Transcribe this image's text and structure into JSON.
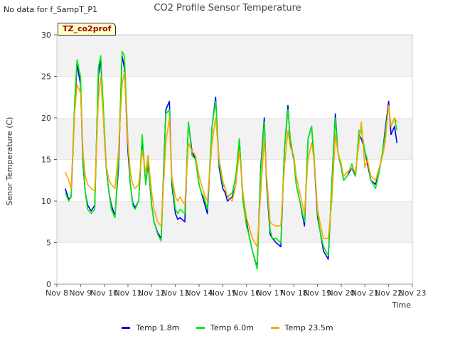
{
  "nodata_text": "No data for f_SampT_P1",
  "chart_data": {
    "type": "line",
    "title": "CO2 Profile Sensor Temperature",
    "xlabel": "Time",
    "ylabel": "Senor Temperature (C)",
    "site_tag": "TZ_co2prof",
    "ylim": [
      0,
      30
    ],
    "yticks": [
      0,
      5,
      10,
      15,
      20,
      25,
      30
    ],
    "xlim": [
      8,
      23
    ],
    "xticks": [
      8,
      9,
      10,
      11,
      12,
      13,
      14,
      15,
      16,
      17,
      18,
      19,
      20,
      21,
      22,
      23
    ],
    "xtick_labels": [
      "Nov 8",
      "Nov 9",
      "Nov 10",
      "Nov 11",
      "Nov 12",
      "Nov 13",
      "Nov 14",
      "Nov 15",
      "Nov 16",
      "Nov 17",
      "Nov 18",
      "Nov 19",
      "Nov 20",
      "Nov 21",
      "Nov 22",
      "Nov 23"
    ],
    "grid": "horizontal alternating bands",
    "legend_position": "bottom",
    "series": [
      {
        "name": "Temp 1.8m",
        "color": "#0000ee",
        "x": [
          8.35,
          8.5,
          8.6,
          8.75,
          8.85,
          9.0,
          9.1,
          9.2,
          9.3,
          9.45,
          9.6,
          9.75,
          9.85,
          10.0,
          10.1,
          10.2,
          10.3,
          10.45,
          10.6,
          10.75,
          10.85,
          11.0,
          11.1,
          11.2,
          11.3,
          11.45,
          11.6,
          11.75,
          11.85,
          12.0,
          12.1,
          12.25,
          12.4,
          12.6,
          12.75,
          12.85,
          13.0,
          13.1,
          13.2,
          13.4,
          13.55,
          13.7,
          13.85,
          14.0,
          14.1,
          14.2,
          14.35,
          14.55,
          14.7,
          14.85,
          15.0,
          15.1,
          15.2,
          15.4,
          15.55,
          15.7,
          15.85,
          16.0,
          16.1,
          16.25,
          16.45,
          16.6,
          16.75,
          16.85,
          17.0,
          17.1,
          17.25,
          17.45,
          17.6,
          17.75,
          17.85,
          18.0,
          18.1,
          18.25,
          18.45,
          18.6,
          18.75,
          18.85,
          19.0,
          19.1,
          19.25,
          19.45,
          19.6,
          19.75,
          19.85,
          20.0,
          20.1,
          20.25,
          20.45,
          20.6,
          20.75,
          20.85,
          21.0,
          21.1,
          21.25,
          21.45,
          21.6,
          21.75,
          21.85,
          22.0,
          22.1,
          22.25,
          22.35
        ],
        "values": [
          11.5,
          10.2,
          10.5,
          21.0,
          26.5,
          24.0,
          14.5,
          11.0,
          9.5,
          8.8,
          9.5,
          25.0,
          27.0,
          18.0,
          13.5,
          11.0,
          9.5,
          8.2,
          14.0,
          27.5,
          26.0,
          16.0,
          12.0,
          9.8,
          9.2,
          10.0,
          17.5,
          12.0,
          14.5,
          9.5,
          7.5,
          6.2,
          5.5,
          21.0,
          22.0,
          12.0,
          8.5,
          7.8,
          8.0,
          7.5,
          19.5,
          16.0,
          15.0,
          12.0,
          11.0,
          10.0,
          8.5,
          19.0,
          22.5,
          14.0,
          11.5,
          11.0,
          10.0,
          10.5,
          12.0,
          17.5,
          10.0,
          7.5,
          6.0,
          4.0,
          2.0,
          14.0,
          20.0,
          12.0,
          6.0,
          5.5,
          5.0,
          4.5,
          16.0,
          21.5,
          17.0,
          15.0,
          12.0,
          10.0,
          7.0,
          17.5,
          19.0,
          15.0,
          8.0,
          6.5,
          4.0,
          3.0,
          12.0,
          20.5,
          16.0,
          14.0,
          12.5,
          13.0,
          14.0,
          13.0,
          18.0,
          17.5,
          16.0,
          14.5,
          12.5,
          12.0,
          13.5,
          16.0,
          18.5,
          22.0,
          18.0,
          19.0,
          17.0
        ]
      },
      {
        "name": "Temp 6.0m",
        "color": "#00ee00",
        "x": [
          8.35,
          8.5,
          8.6,
          8.75,
          8.85,
          9.0,
          9.1,
          9.2,
          9.3,
          9.45,
          9.6,
          9.75,
          9.85,
          10.0,
          10.1,
          10.2,
          10.3,
          10.45,
          10.6,
          10.75,
          10.85,
          11.0,
          11.1,
          11.2,
          11.3,
          11.45,
          11.6,
          11.75,
          11.85,
          12.0,
          12.1,
          12.25,
          12.4,
          12.6,
          12.75,
          12.85,
          13.0,
          13.1,
          13.2,
          13.4,
          13.55,
          13.7,
          13.85,
          14.0,
          14.1,
          14.2,
          14.35,
          14.55,
          14.7,
          14.85,
          15.0,
          15.1,
          15.2,
          15.4,
          15.55,
          15.7,
          15.85,
          16.0,
          16.1,
          16.25,
          16.45,
          16.6,
          16.75,
          16.85,
          17.0,
          17.1,
          17.25,
          17.45,
          17.6,
          17.75,
          17.85,
          18.0,
          18.1,
          18.25,
          18.45,
          18.6,
          18.75,
          18.85,
          19.0,
          19.1,
          19.25,
          19.45,
          19.6,
          19.75,
          19.85,
          20.0,
          20.1,
          20.25,
          20.45,
          20.6,
          20.75,
          20.85,
          21.0,
          21.1,
          21.25,
          21.45,
          21.6,
          21.75,
          21.85,
          22.0,
          22.1,
          22.25,
          22.35
        ],
        "values": [
          11.0,
          10.0,
          10.5,
          22.0,
          27.0,
          25.0,
          15.0,
          11.0,
          9.0,
          8.5,
          9.0,
          26.0,
          27.5,
          19.0,
          13.5,
          11.0,
          9.0,
          8.0,
          15.0,
          28.0,
          27.5,
          17.0,
          12.0,
          9.5,
          9.0,
          10.0,
          18.0,
          12.0,
          15.0,
          9.5,
          7.5,
          6.0,
          5.2,
          20.5,
          21.0,
          12.5,
          9.0,
          8.5,
          9.0,
          8.5,
          19.5,
          15.5,
          15.0,
          12.0,
          11.0,
          10.5,
          9.0,
          19.0,
          22.0,
          14.5,
          12.0,
          11.5,
          10.5,
          11.0,
          13.0,
          17.5,
          10.0,
          7.0,
          6.0,
          4.0,
          1.8,
          13.5,
          19.5,
          12.5,
          6.5,
          5.5,
          5.5,
          5.0,
          16.0,
          21.0,
          17.5,
          15.0,
          12.0,
          10.0,
          7.5,
          17.5,
          19.0,
          15.5,
          8.5,
          6.5,
          4.5,
          3.5,
          12.0,
          20.0,
          16.0,
          14.0,
          12.5,
          13.0,
          14.5,
          13.0,
          18.5,
          18.5,
          16.0,
          15.0,
          12.5,
          11.5,
          13.5,
          16.0,
          18.0,
          21.5,
          19.0,
          20.0,
          18.5
        ]
      },
      {
        "name": "Temp 23.5m",
        "color": "#ffa500",
        "x": [
          8.35,
          8.5,
          8.6,
          8.75,
          8.85,
          9.0,
          9.1,
          9.2,
          9.3,
          9.45,
          9.6,
          9.75,
          9.85,
          10.0,
          10.1,
          10.2,
          10.3,
          10.45,
          10.6,
          10.75,
          10.85,
          11.0,
          11.1,
          11.2,
          11.3,
          11.45,
          11.6,
          11.75,
          11.85,
          12.0,
          12.1,
          12.25,
          12.4,
          12.6,
          12.75,
          12.85,
          13.0,
          13.1,
          13.2,
          13.4,
          13.55,
          13.7,
          13.85,
          14.0,
          14.1,
          14.2,
          14.35,
          14.55,
          14.7,
          14.85,
          15.0,
          15.1,
          15.2,
          15.4,
          15.55,
          15.7,
          15.85,
          16.0,
          16.1,
          16.25,
          16.45,
          16.6,
          16.75,
          16.85,
          17.0,
          17.1,
          17.25,
          17.45,
          17.6,
          17.75,
          17.85,
          18.0,
          18.1,
          18.25,
          18.45,
          18.6,
          18.75,
          18.85,
          19.0,
          19.1,
          19.25,
          19.45,
          19.6,
          19.75,
          19.85,
          20.0,
          20.1,
          20.25,
          20.45,
          20.6,
          20.75,
          20.85,
          21.0,
          21.1,
          21.25,
          21.45,
          21.6,
          21.75,
          21.85,
          22.0,
          22.1,
          22.25,
          22.35
        ],
        "values": [
          13.5,
          12.5,
          11.5,
          20.5,
          24.0,
          23.0,
          16.0,
          13.0,
          12.0,
          11.5,
          11.2,
          22.0,
          25.0,
          18.0,
          14.0,
          12.5,
          12.0,
          11.5,
          16.0,
          24.0,
          25.5,
          17.0,
          13.5,
          12.0,
          11.5,
          12.0,
          16.0,
          13.5,
          15.5,
          11.0,
          9.0,
          7.5,
          7.0,
          17.0,
          20.0,
          13.0,
          10.5,
          10.0,
          10.5,
          9.5,
          17.0,
          16.0,
          15.5,
          13.0,
          12.0,
          11.0,
          10.0,
          17.0,
          20.0,
          15.0,
          12.5,
          11.5,
          10.5,
          10.0,
          12.0,
          16.0,
          11.0,
          8.0,
          7.0,
          5.5,
          4.5,
          11.0,
          17.5,
          13.0,
          7.5,
          7.2,
          7.0,
          7.0,
          14.0,
          18.5,
          16.5,
          15.5,
          13.0,
          11.0,
          8.5,
          15.0,
          17.0,
          15.0,
          9.0,
          7.5,
          5.5,
          5.5,
          10.0,
          18.0,
          16.0,
          14.5,
          13.0,
          13.5,
          14.0,
          13.5,
          17.0,
          19.5,
          14.0,
          15.0,
          13.0,
          12.5,
          14.0,
          15.5,
          17.0,
          21.5,
          19.0,
          20.0,
          19.5
        ]
      }
    ]
  }
}
